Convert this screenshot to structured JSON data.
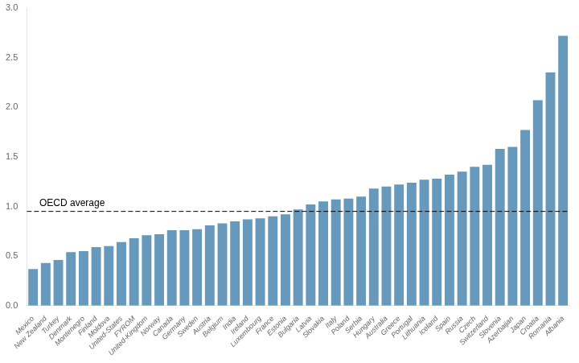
{
  "chart_data": {
    "type": "bar",
    "categories": [
      "Mexico",
      "New Zealand",
      "Turkey",
      "Denmark",
      "Montenegro",
      "Finland",
      "Moldova",
      "United-States",
      "FYROM",
      "United-Kingdom",
      "Norway",
      "Canada",
      "Germany",
      "Sweden",
      "Austria",
      "Belgium",
      "India",
      "Ireland",
      "Luxembourg",
      "France",
      "Estonia",
      "Bulgaria",
      "Latvia",
      "Slovakia",
      "Italy",
      "Poland",
      "Serbia",
      "Hungary",
      "Australia",
      "Greece",
      "Portugal",
      "Lithuania",
      "Iceland",
      "Spain",
      "Russia",
      "Czech",
      "Switzerland",
      "Slovenia",
      "Azerbaijan",
      "Japan",
      "Croatia",
      "Romania",
      "Albania"
    ],
    "values": [
      0.37,
      0.43,
      0.46,
      0.54,
      0.55,
      0.59,
      0.6,
      0.64,
      0.68,
      0.71,
      0.72,
      0.76,
      0.76,
      0.77,
      0.81,
      0.83,
      0.85,
      0.87,
      0.88,
      0.9,
      0.92,
      0.97,
      1.02,
      1.05,
      1.07,
      1.08,
      1.1,
      1.18,
      1.2,
      1.22,
      1.24,
      1.27,
      1.28,
      1.32,
      1.35,
      1.4,
      1.42,
      1.58,
      1.6,
      1.77,
      2.07,
      2.35,
      2.72
    ],
    "color": "#6699bb",
    "ylim": [
      0,
      3.0
    ],
    "yticks": [
      {
        "value": 0,
        "label": "0.0"
      },
      0.5,
      {
        "value": 1.0,
        "label": "1.0"
      },
      1.5,
      {
        "value": 2.0,
        "label": "2.0"
      },
      2.5,
      {
        "value": 3.0,
        "label": "3.0"
      }
    ],
    "grid": false,
    "annotations": [
      {
        "text": "OECD average",
        "y": 0.95,
        "line_style": "dashed"
      }
    ]
  }
}
